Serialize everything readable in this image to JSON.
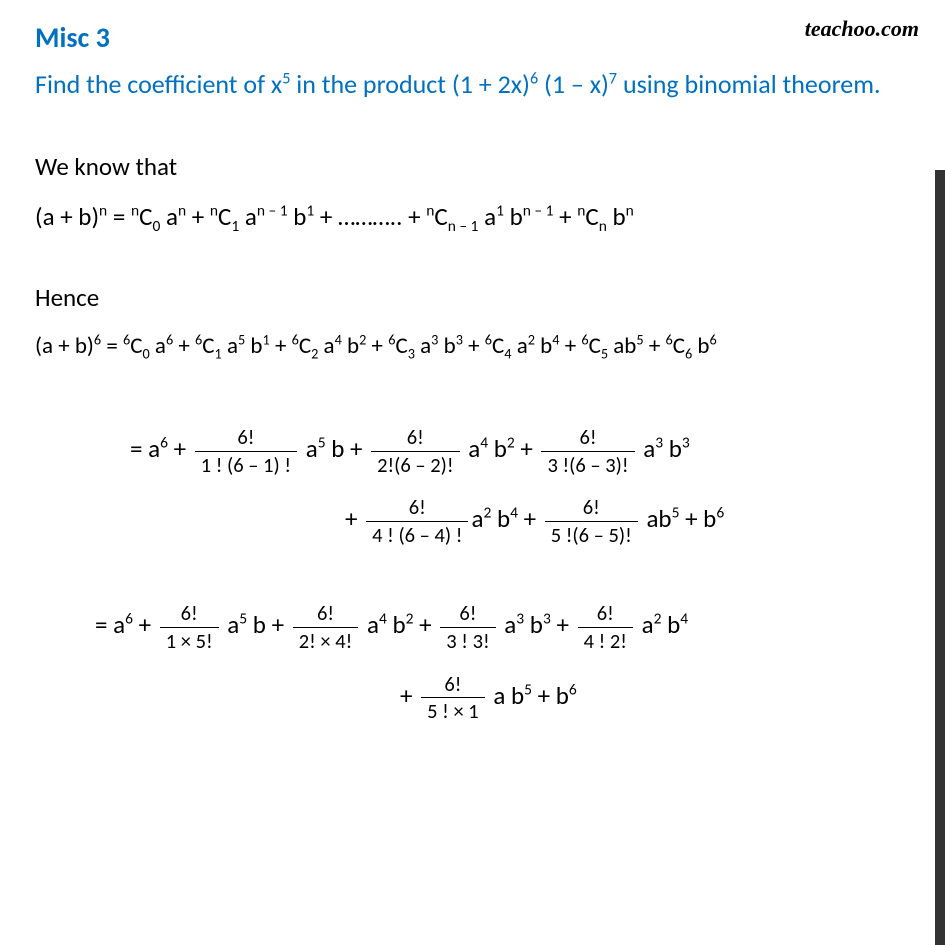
{
  "colors": {
    "heading": "#0070c0",
    "body": "#000000",
    "sidebar": "#333333",
    "background": "#ffffff"
  },
  "watermark": "teachoo.com",
  "title": "Misc  3",
  "question_line1": "Find the coefficient of x",
  "question_sup1": "5",
  "question_mid1": " in the product (1 + 2x)",
  "question_sup2": "6",
  "question_mid2": " (1 – x)",
  "question_sup3": "7",
  "question_end": " using binomial theorem.",
  "weknow": "We know that",
  "general": {
    "lhs_a": "(a + b)",
    "lhs_sup": "n",
    "eq": " = ",
    "c0_pre": "",
    "c0": "C",
    "c0_n": "n",
    "c0_r": "0",
    "a": " a",
    "an": "n",
    "plus": " + ",
    "c1_n": "n",
    "c1_r": "1",
    "an1": "n – 1",
    "b1": "1",
    "dots": " + ……….. + ",
    "cn1_n": "n",
    "cn1_r": "n – 1",
    "a1": "1",
    "bn1": "n – 1",
    "cn_n": "n",
    "cn_r": "n",
    "bn": "n"
  },
  "hence": "Hence",
  "exp6": {
    "lhs": "(a + b)",
    "lhs_sup": "6",
    "eq": " =  ",
    "terms": [
      {
        "n": "6",
        "r": "0",
        "a": "6",
        "b": ""
      },
      {
        "n": "6",
        "r": "1",
        "a": "5",
        "b": "1"
      },
      {
        "n": "6",
        "r": "2",
        "a": "4",
        "b": "2"
      },
      {
        "n": "6",
        "r": "3",
        "a": "3",
        "b": "3"
      },
      {
        "n": "6",
        "r": "4",
        "a": "2",
        "b": "4"
      },
      {
        "n": "6",
        "r": "5",
        "a": "",
        "b": "5",
        "ab": "ab"
      },
      {
        "n": "6",
        "r": "6",
        "a": "",
        "b": "6",
        "only_b": true
      }
    ]
  },
  "frac_line1": {
    "lead": "=   a",
    "lead_sup": "6",
    "plus": "  +  ",
    "t1": {
      "num": "6!",
      "den": "1 ! (6 – 1) !",
      "after": " a",
      "ae": "5",
      "mid": " b"
    },
    "t2": {
      "num": "6!",
      "den": "2!(6 – 2)!",
      "after": " a",
      "ae": "4",
      "mid": " b",
      "be": "2"
    },
    "t3": {
      "num": "6!",
      "den": "3 !(6 – 3)!",
      "after": " a",
      "ae": "3",
      "mid": " b",
      "be": "3"
    }
  },
  "frac_line2": {
    "lead": "+  ",
    "t4": {
      "num": "6!",
      "den": "4 ! (6 – 4) !",
      "after": "a",
      "ae": "2",
      "mid": " b",
      "be": "4"
    },
    "t5": {
      "num": "6!",
      "den": "5 !(6 – 5)!",
      "after": " ab",
      "be": "5"
    },
    "tail": " +  b",
    "tail_sup": "6"
  },
  "frac_line3": {
    "lead": "=   a",
    "lead_sup": "6",
    "plus": " + ",
    "t1": {
      "num": "6!",
      "den": "1  × 5!",
      "after": " a",
      "ae": "5",
      "mid": " b"
    },
    "t2": {
      "num": "6!",
      "den": "2! × 4!",
      "after": " a",
      "ae": "4",
      "mid": " b",
      "be": "2"
    },
    "t3": {
      "num": "6!",
      "den": "3 ! 3!",
      "after": " a",
      "ae": "3",
      "mid": " b",
      "be": "3"
    },
    "t4": {
      "num": "6!",
      "den": "4 ! 2!",
      "after": " a",
      "ae": "2",
      "mid": " b",
      "be": "4"
    }
  },
  "frac_line4": {
    "lead": "+ ",
    "t5": {
      "num": "6!",
      "den": "5 ! × 1",
      "after": " a b",
      "be": "5"
    },
    "tail": " +  b",
    "tail_sup": "6"
  }
}
